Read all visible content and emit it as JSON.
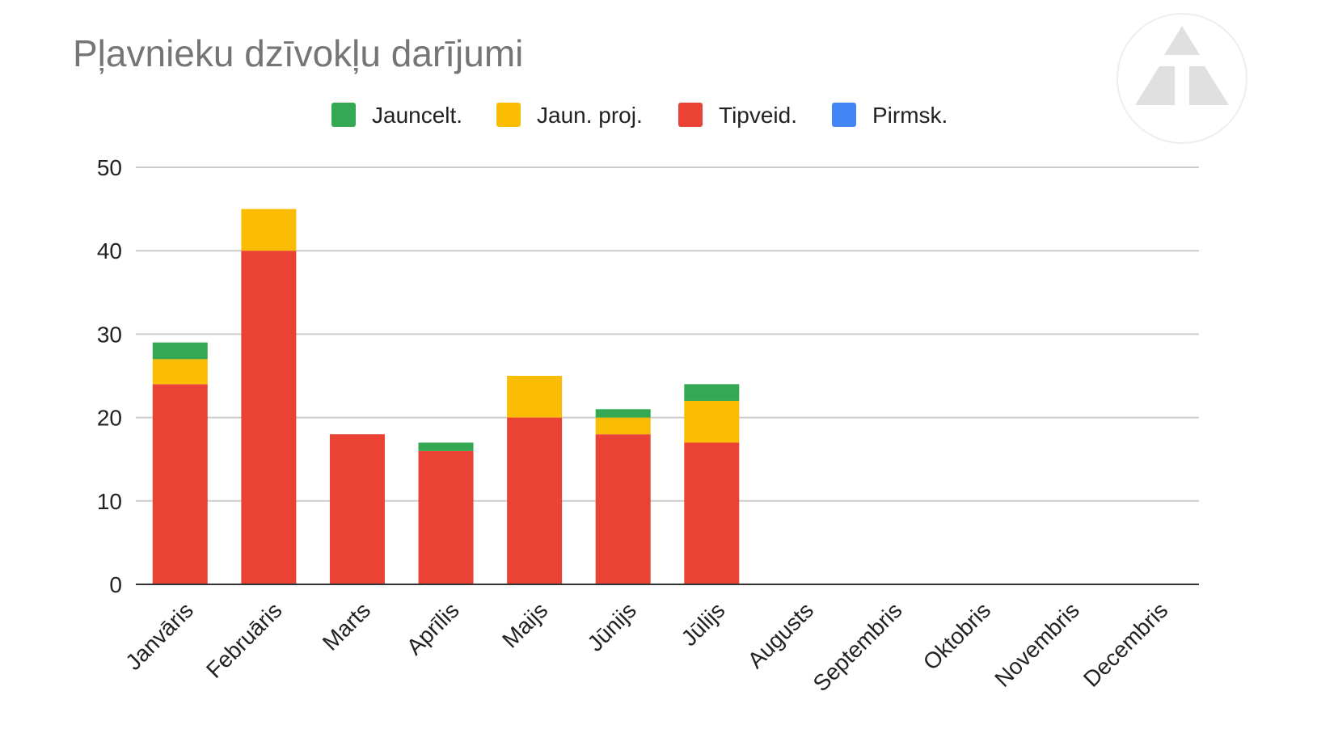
{
  "chart_data": {
    "type": "bar",
    "stacked": true,
    "title": "Pļavnieku dzīvokļu darījumi",
    "categories": [
      "Janvāris",
      "Februāris",
      "Marts",
      "Aprīlis",
      "Maijs",
      "Jūnijs",
      "Jūlijs",
      "Augusts",
      "Septembris",
      "Oktobris",
      "Novembris",
      "Decembris"
    ],
    "series": [
      {
        "name": "Jauncelt.",
        "color": "#34a853",
        "values": [
          2,
          0,
          0,
          1,
          0,
          1,
          2,
          0,
          0,
          0,
          0,
          0
        ]
      },
      {
        "name": "Jaun. proj.",
        "color": "#fbbc04",
        "values": [
          3,
          5,
          0,
          0,
          5,
          2,
          5,
          0,
          0,
          0,
          0,
          0
        ]
      },
      {
        "name": "Tipveid.",
        "color": "#ea4335",
        "values": [
          24,
          40,
          18,
          16,
          20,
          18,
          17,
          0,
          0,
          0,
          0,
          0
        ]
      },
      {
        "name": "Pirmsk.",
        "color": "#4285f4",
        "values": [
          0,
          0,
          0,
          0,
          0,
          0,
          0,
          0,
          0,
          0,
          0,
          0
        ]
      }
    ],
    "stack_order_bottom_to_top": [
      "Pirmsk.",
      "Tipveid.",
      "Jaun. proj.",
      "Jauncelt."
    ],
    "xlabel": "",
    "ylabel": "",
    "ylim": [
      0,
      50
    ],
    "yticks": [
      0,
      10,
      20,
      30,
      40,
      50
    ],
    "grid": true,
    "legend_position": "top"
  },
  "logo": {
    "icon": "triangle-logo-icon",
    "color": "#e0e0e0"
  }
}
